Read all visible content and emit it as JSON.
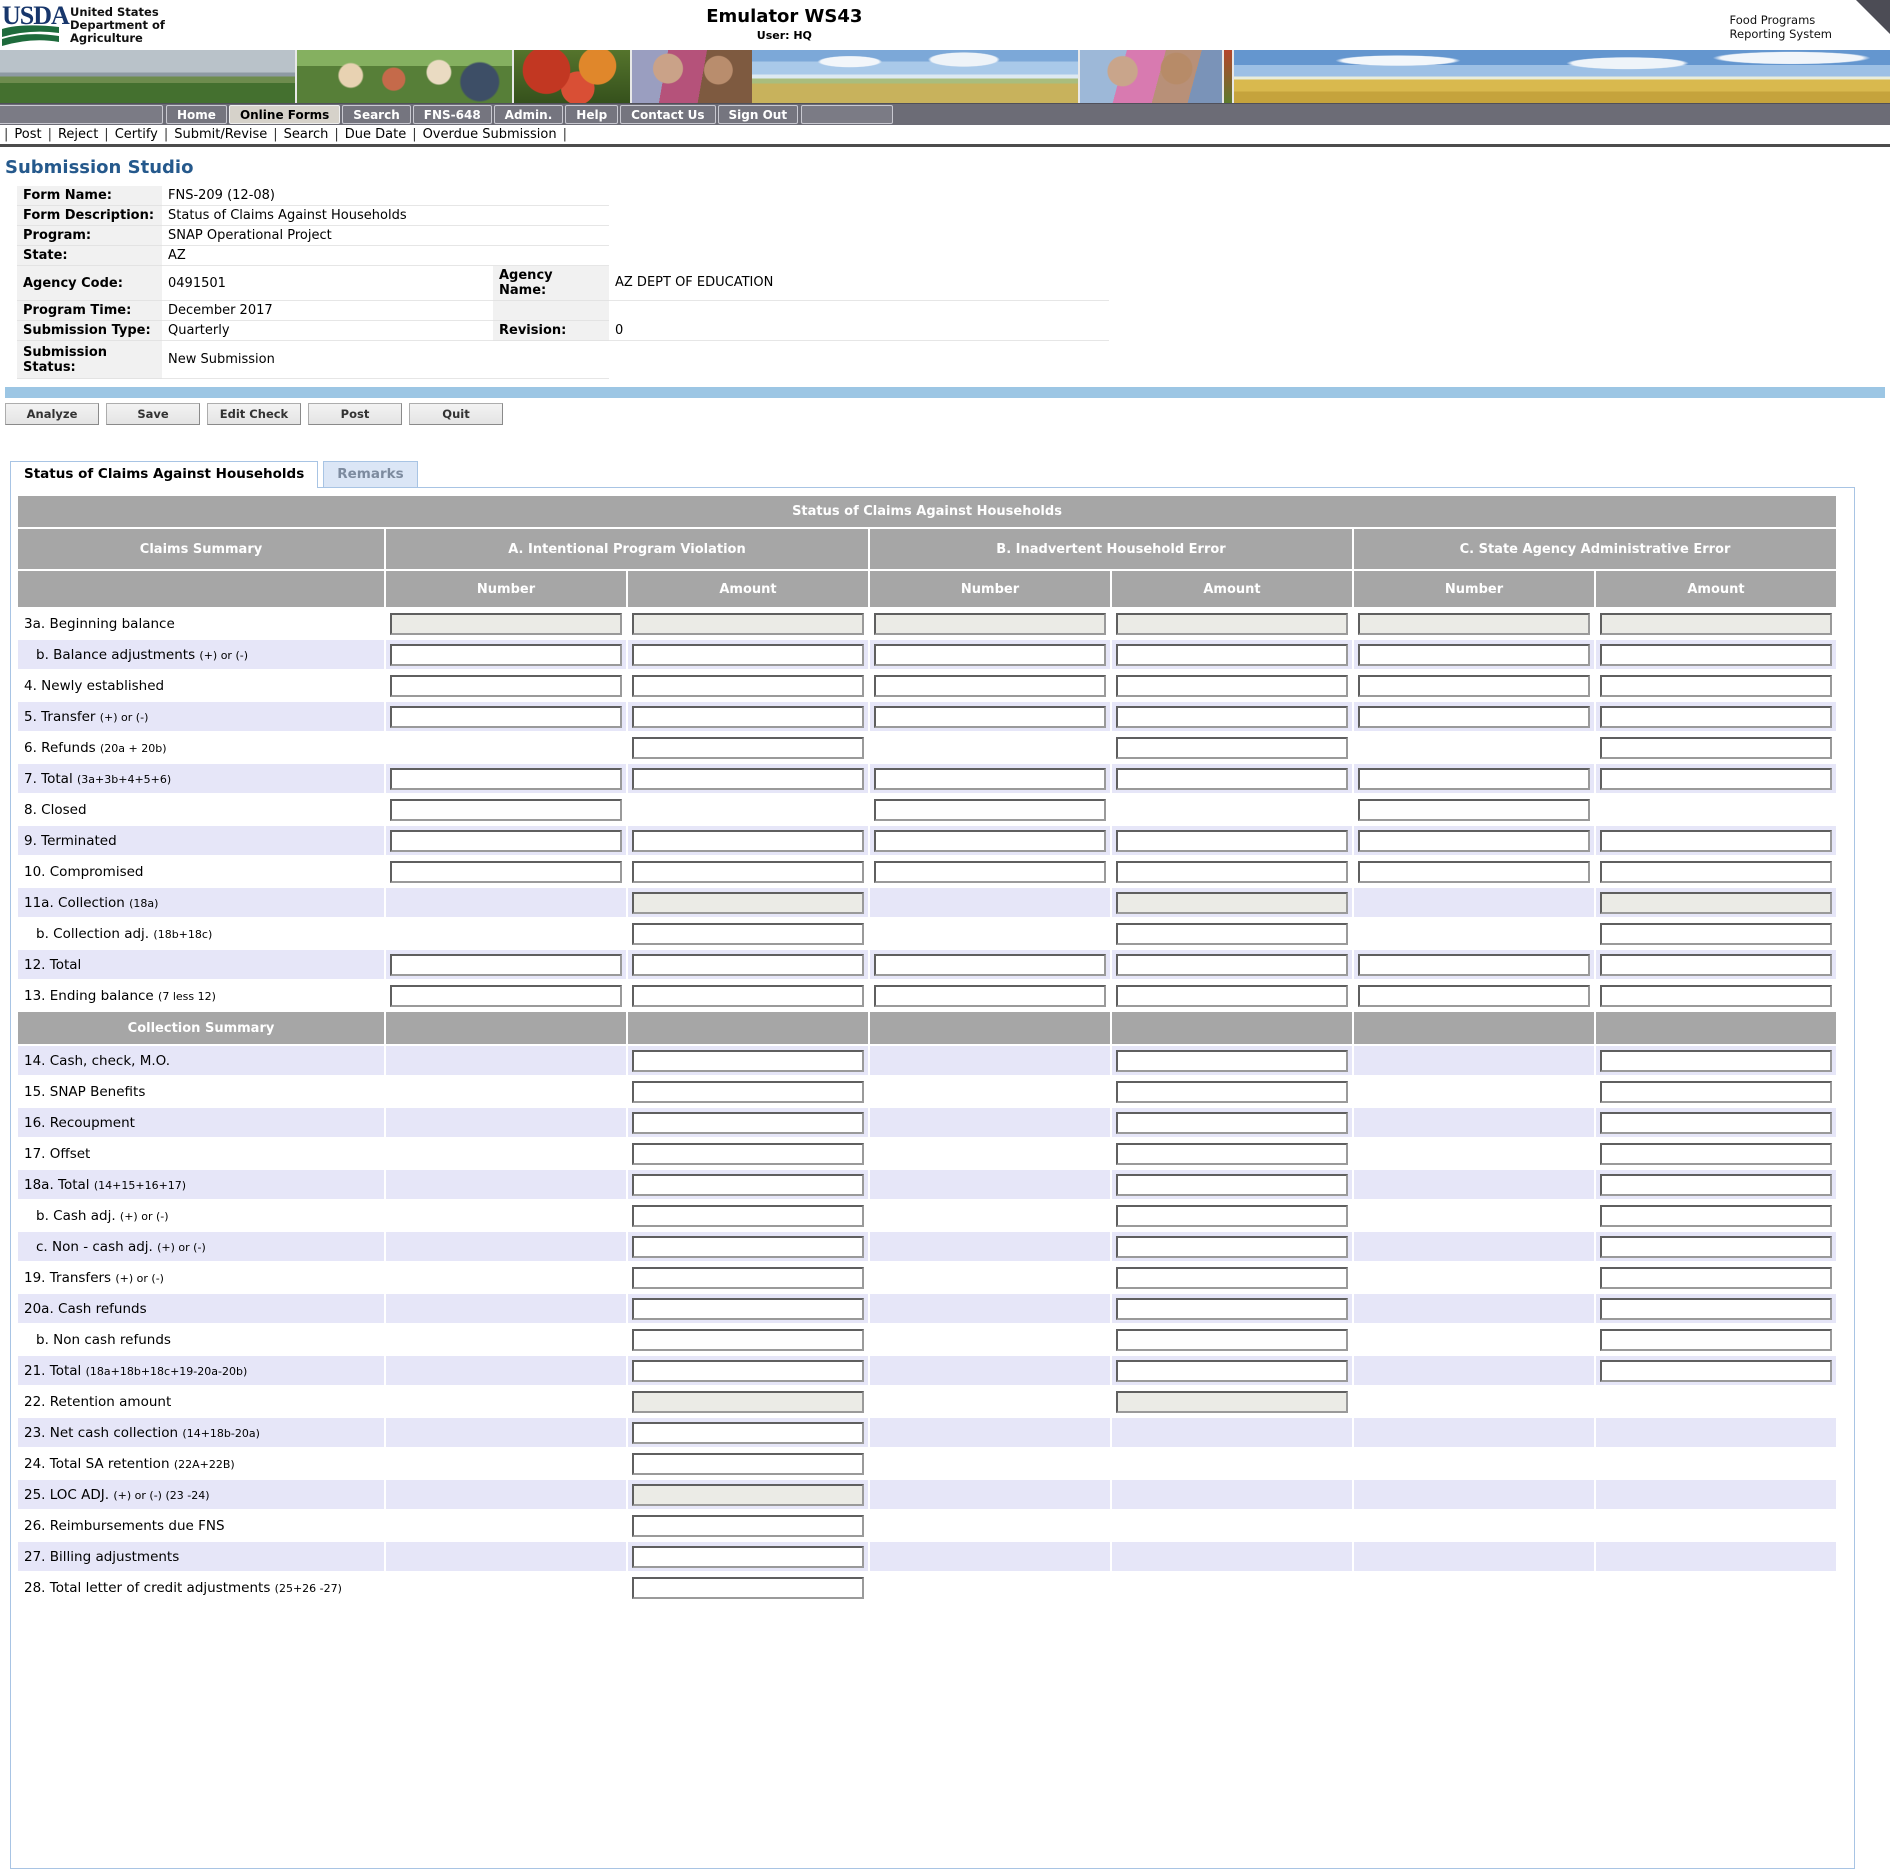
{
  "header": {
    "logo_text": "USDA",
    "dept_lines": [
      "United States",
      "Department of",
      "Agriculture"
    ],
    "app_title": "Emulator WS43",
    "user_line": "User: HQ",
    "system_name_lines": [
      "Food Programs",
      "Reporting System"
    ]
  },
  "nav": {
    "items": [
      {
        "label": "Home",
        "active": false
      },
      {
        "label": "Online Forms",
        "active": true
      },
      {
        "label": "Search",
        "active": false
      },
      {
        "label": "FNS-648",
        "active": false
      },
      {
        "label": "Admin.",
        "active": false
      },
      {
        "label": "Help",
        "active": false
      },
      {
        "label": "Contact Us",
        "active": false
      },
      {
        "label": "Sign Out",
        "active": false
      }
    ]
  },
  "submenu": {
    "items": [
      "Post",
      "Reject",
      "Certify",
      "Submit/Revise",
      "Search",
      "Due Date",
      "Overdue Submission"
    ]
  },
  "page_title": "Submission Studio",
  "form_details": {
    "rows": [
      {
        "label": "Form Name:",
        "value": "FNS-209 (12-08)"
      },
      {
        "label": "Form Description:",
        "value": "Status of Claims Against Households"
      },
      {
        "label": "Program:",
        "value": "SNAP Operational Project"
      },
      {
        "label": "State:",
        "value": "AZ"
      },
      {
        "label": "Agency Code:",
        "value": "0491501",
        "label2": "Agency Name:",
        "value2": "AZ DEPT OF EDUCATION"
      },
      {
        "label": "Program Time:",
        "value": "December 2017",
        "label2": "",
        "value2": ""
      },
      {
        "label": "Submission Type:",
        "value": "Quarterly",
        "label2": "Revision:",
        "value2": "0"
      },
      {
        "label": "Submission Status:",
        "value": "New Submission",
        "tall": true
      }
    ]
  },
  "toolbar": {
    "buttons": [
      "Analyze",
      "Save",
      "Edit Check",
      "Post",
      "Quit"
    ]
  },
  "tabs": [
    {
      "label": "Status of Claims Against Households",
      "active": true
    },
    {
      "label": "Remarks",
      "active": false
    }
  ],
  "claims_table": {
    "title": "Status of Claims Against Households",
    "group_headers": [
      "Claims Summary",
      "A. Intentional Program Violation",
      "B. Inadvertent Household Error",
      "C. State Agency Administrative Error"
    ],
    "sub_headers": [
      "Number",
      "Amount",
      "Number",
      "Amount",
      "Number",
      "Amount"
    ],
    "rows": [
      {
        "id": "3a",
        "label": "3a. Beginning balance",
        "sub": "",
        "indent": false,
        "stripe": "white",
        "cells": [
          "disabled",
          "disabled",
          "disabled",
          "disabled",
          "disabled",
          "disabled"
        ]
      },
      {
        "id": "3b",
        "label": "b. Balance adjustments",
        "sub": "(+) or (-)",
        "indent": true,
        "stripe": "lav",
        "cells": [
          "input",
          "input",
          "input",
          "input",
          "input",
          "input"
        ]
      },
      {
        "id": "4",
        "label": "4. Newly established",
        "sub": "",
        "indent": false,
        "stripe": "white",
        "cells": [
          "input",
          "input",
          "input",
          "input",
          "input",
          "input"
        ]
      },
      {
        "id": "5",
        "label": "5. Transfer",
        "sub": "(+) or (-)",
        "indent": false,
        "stripe": "lav",
        "cells": [
          "input",
          "input",
          "input",
          "input",
          "input",
          "input"
        ]
      },
      {
        "id": "6",
        "label": "6. Refunds",
        "sub": "(20a + 20b)",
        "indent": false,
        "stripe": "white",
        "cells": [
          "empty",
          "input",
          "empty",
          "input",
          "empty",
          "input"
        ]
      },
      {
        "id": "7",
        "label": "7. Total",
        "sub": "(3a+3b+4+5+6)",
        "indent": false,
        "stripe": "lav",
        "cells": [
          "input",
          "input",
          "input",
          "input",
          "input",
          "input"
        ]
      },
      {
        "id": "8",
        "label": "8. Closed",
        "sub": "",
        "indent": false,
        "stripe": "white",
        "cells": [
          "input",
          "empty",
          "input",
          "empty",
          "input",
          "empty"
        ]
      },
      {
        "id": "9",
        "label": "9. Terminated",
        "sub": "",
        "indent": false,
        "stripe": "lav",
        "cells": [
          "input",
          "input",
          "input",
          "input",
          "input",
          "input"
        ]
      },
      {
        "id": "10",
        "label": "10. Compromised",
        "sub": "",
        "indent": false,
        "stripe": "white",
        "cells": [
          "input",
          "input",
          "input",
          "input",
          "input",
          "input"
        ]
      },
      {
        "id": "11a",
        "label": "11a. Collection",
        "sub": "(18a)",
        "indent": false,
        "stripe": "lav",
        "cells": [
          "empty",
          "disabled",
          "empty",
          "disabled",
          "empty",
          "disabled"
        ]
      },
      {
        "id": "11b",
        "label": "b. Collection adj.",
        "sub": "(18b+18c)",
        "indent": true,
        "stripe": "white",
        "cells": [
          "empty",
          "input",
          "empty",
          "input",
          "empty",
          "input"
        ]
      },
      {
        "id": "12",
        "label": "12. Total",
        "sub": "",
        "indent": false,
        "stripe": "lav",
        "cells": [
          "input",
          "input",
          "input",
          "input",
          "input",
          "input"
        ]
      },
      {
        "id": "13",
        "label": "13. Ending balance",
        "sub": "(7 less 12)",
        "indent": false,
        "stripe": "white",
        "cells": [
          "input",
          "input",
          "input",
          "input",
          "input",
          "input"
        ]
      },
      {
        "type": "section",
        "label": "Collection Summary"
      },
      {
        "id": "14",
        "label": "14. Cash, check, M.O.",
        "sub": "",
        "indent": false,
        "stripe": "lav",
        "cells": [
          "empty",
          "input",
          "empty",
          "input",
          "empty",
          "input"
        ]
      },
      {
        "id": "15",
        "label": "15. SNAP Benefits",
        "sub": "",
        "indent": false,
        "stripe": "white",
        "cells": [
          "empty",
          "input",
          "empty",
          "input",
          "empty",
          "input"
        ]
      },
      {
        "id": "16",
        "label": "16. Recoupment",
        "sub": "",
        "indent": false,
        "stripe": "lav",
        "cells": [
          "empty",
          "input",
          "empty",
          "input",
          "empty",
          "input"
        ]
      },
      {
        "id": "17",
        "label": "17. Offset",
        "sub": "",
        "indent": false,
        "stripe": "white",
        "cells": [
          "empty",
          "input",
          "empty",
          "input",
          "empty",
          "input"
        ]
      },
      {
        "id": "18a",
        "label": "18a. Total",
        "sub": "(14+15+16+17)",
        "indent": false,
        "stripe": "lav",
        "cells": [
          "empty",
          "input",
          "empty",
          "input",
          "empty",
          "input"
        ]
      },
      {
        "id": "18b",
        "label": "b. Cash adj.",
        "sub": "(+) or (-)",
        "indent": true,
        "stripe": "white",
        "cells": [
          "empty",
          "input",
          "empty",
          "input",
          "empty",
          "input"
        ]
      },
      {
        "id": "18c",
        "label": "c. Non - cash adj.",
        "sub": "(+) or (-)",
        "indent": true,
        "stripe": "lav",
        "cells": [
          "empty",
          "input",
          "empty",
          "input",
          "empty",
          "input"
        ]
      },
      {
        "id": "19",
        "label": "19. Transfers",
        "sub": "(+) or (-)",
        "indent": false,
        "stripe": "white",
        "cells": [
          "empty",
          "input",
          "empty",
          "input",
          "empty",
          "input"
        ]
      },
      {
        "id": "20a",
        "label": "20a. Cash refunds",
        "sub": "",
        "indent": false,
        "stripe": "lav",
        "cells": [
          "empty",
          "input",
          "empty",
          "input",
          "empty",
          "input"
        ]
      },
      {
        "id": "20b",
        "label": "b. Non cash refunds",
        "sub": "",
        "indent": true,
        "stripe": "white",
        "cells": [
          "empty",
          "input",
          "empty",
          "input",
          "empty",
          "input"
        ]
      },
      {
        "id": "21",
        "label": "21. Total",
        "sub": "(18a+18b+18c+19-20a-20b)",
        "indent": false,
        "stripe": "lav",
        "cells": [
          "empty",
          "input",
          "empty",
          "input",
          "empty",
          "input"
        ]
      },
      {
        "id": "22",
        "label": "22. Retention amount",
        "sub": "",
        "indent": false,
        "stripe": "white",
        "cells": [
          "empty",
          "disabled",
          "empty",
          "disabled",
          "empty",
          "empty"
        ]
      },
      {
        "id": "23",
        "label": "23. Net cash collection",
        "sub": "(14+18b-20a)",
        "indent": false,
        "stripe": "lav",
        "cells": [
          "empty",
          "input",
          "empty",
          "empty",
          "empty",
          "empty"
        ]
      },
      {
        "id": "24",
        "label": "24. Total SA retention",
        "sub": "(22A+22B)",
        "indent": false,
        "stripe": "white",
        "cells": [
          "empty",
          "input",
          "empty",
          "empty",
          "empty",
          "empty"
        ]
      },
      {
        "id": "25",
        "label": "25. LOC ADJ.",
        "sub": "(+) or (-) (23 -24)",
        "indent": false,
        "stripe": "lav",
        "cells": [
          "empty",
          "disabled",
          "empty",
          "empty",
          "empty",
          "empty"
        ]
      },
      {
        "id": "26",
        "label": "26. Reimbursements due FNS",
        "sub": "",
        "indent": false,
        "stripe": "white",
        "cells": [
          "empty",
          "input",
          "empty",
          "empty",
          "empty",
          "empty"
        ]
      },
      {
        "id": "27",
        "label": "27. Billing adjustments",
        "sub": "",
        "indent": false,
        "stripe": "lav",
        "cells": [
          "empty",
          "input",
          "empty",
          "empty",
          "empty",
          "empty"
        ]
      },
      {
        "id": "28",
        "label": "28. Total letter of credit adjustments",
        "sub": "(25+26 -27)",
        "indent": false,
        "stripe": "white",
        "cells": [
          "empty",
          "input",
          "empty",
          "empty",
          "empty",
          "empty"
        ]
      }
    ]
  },
  "colors": {
    "header_gray": "#a6a6a6",
    "row_stripe": "#e6e6f8",
    "panel_border": "#a8c4e4",
    "divider_blue": "#9cc6e4",
    "title_blue": "#25598c",
    "nav_bg": "#6c6c76"
  }
}
